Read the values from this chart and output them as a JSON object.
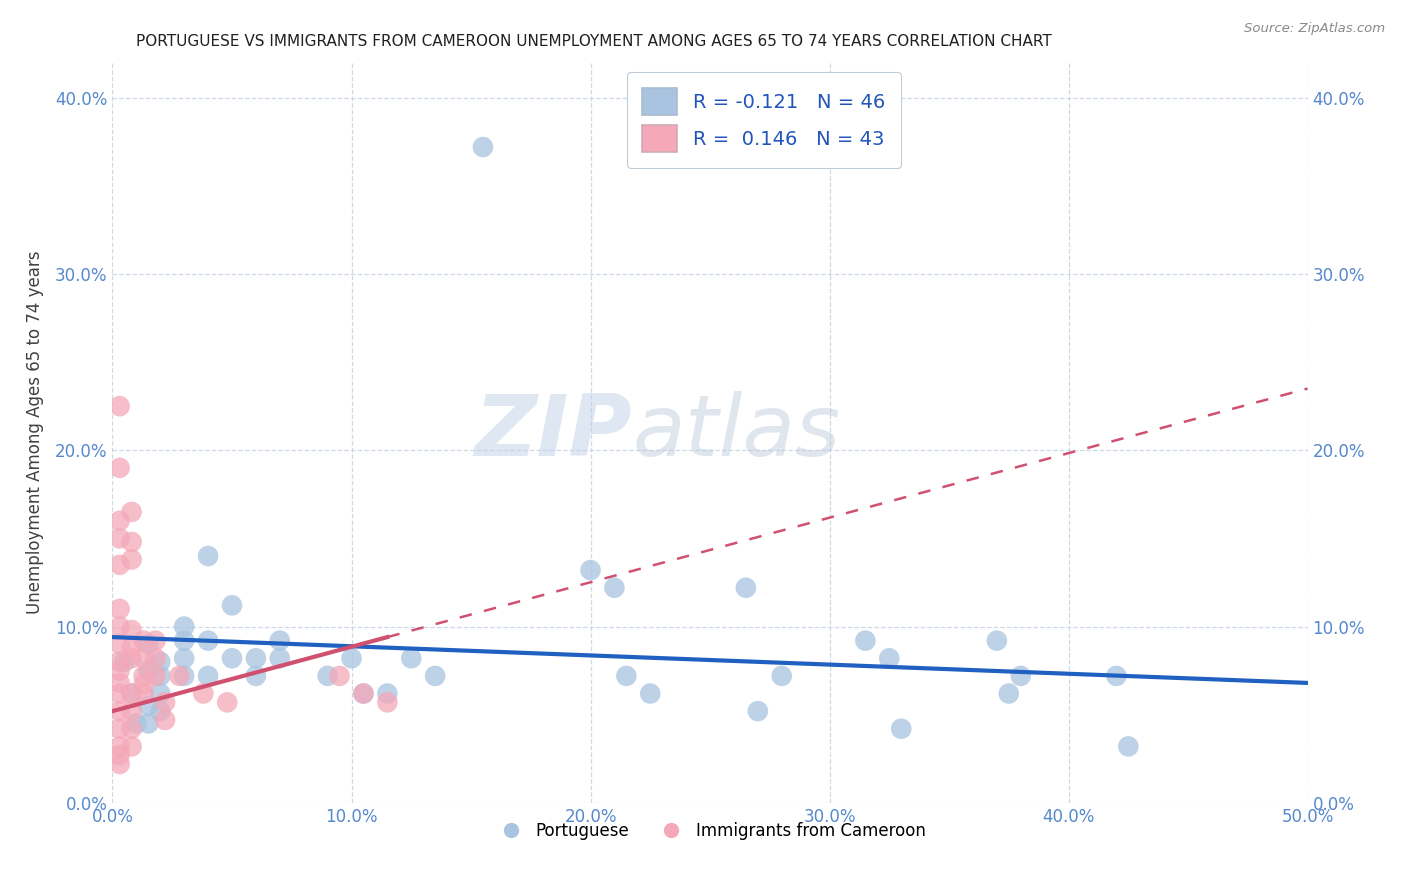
{
  "title": "PORTUGUESE VS IMMIGRANTS FROM CAMEROON UNEMPLOYMENT AMONG AGES 65 TO 74 YEARS CORRELATION CHART",
  "source": "Source: ZipAtlas.com",
  "xlabel": "",
  "ylabel": "Unemployment Among Ages 65 to 74 years",
  "xlim": [
    0.0,
    0.5
  ],
  "ylim": [
    0.0,
    0.42
  ],
  "x_ticks": [
    0.0,
    0.1,
    0.2,
    0.3,
    0.4,
    0.5
  ],
  "x_tick_labels": [
    "0.0%",
    "10.0%",
    "20.0%",
    "30.0%",
    "40.0%",
    "50.0%"
  ],
  "y_ticks": [
    0.0,
    0.1,
    0.2,
    0.3,
    0.4
  ],
  "y_tick_labels": [
    "0.0%",
    "10.0%",
    "20.0%",
    "30.0%",
    "40.0%"
  ],
  "legend_r_blue": "-0.121",
  "legend_n_blue": "46",
  "legend_r_pink": "0.146",
  "legend_n_pink": "43",
  "watermark_zip": "ZIP",
  "watermark_atlas": "atlas",
  "blue_color": "#a8c4e0",
  "pink_color": "#f4a8b8",
  "blue_line_color": "#2060c0",
  "pink_line_color": "#d05070",
  "blue_scatter": [
    [
      0.005,
      0.08
    ],
    [
      0.008,
      0.062
    ],
    [
      0.01,
      0.045
    ],
    [
      0.015,
      0.09
    ],
    [
      0.015,
      0.075
    ],
    [
      0.015,
      0.055
    ],
    [
      0.015,
      0.045
    ],
    [
      0.02,
      0.08
    ],
    [
      0.02,
      0.072
    ],
    [
      0.02,
      0.062
    ],
    [
      0.02,
      0.052
    ],
    [
      0.03,
      0.1
    ],
    [
      0.03,
      0.092
    ],
    [
      0.03,
      0.082
    ],
    [
      0.03,
      0.072
    ],
    [
      0.04,
      0.14
    ],
    [
      0.04,
      0.092
    ],
    [
      0.04,
      0.072
    ],
    [
      0.05,
      0.112
    ],
    [
      0.05,
      0.082
    ],
    [
      0.06,
      0.082
    ],
    [
      0.06,
      0.072
    ],
    [
      0.07,
      0.092
    ],
    [
      0.07,
      0.082
    ],
    [
      0.09,
      0.072
    ],
    [
      0.1,
      0.082
    ],
    [
      0.105,
      0.062
    ],
    [
      0.115,
      0.062
    ],
    [
      0.125,
      0.082
    ],
    [
      0.135,
      0.072
    ],
    [
      0.155,
      0.372
    ],
    [
      0.2,
      0.132
    ],
    [
      0.21,
      0.122
    ],
    [
      0.215,
      0.072
    ],
    [
      0.225,
      0.062
    ],
    [
      0.265,
      0.122
    ],
    [
      0.27,
      0.052
    ],
    [
      0.28,
      0.072
    ],
    [
      0.315,
      0.092
    ],
    [
      0.325,
      0.082
    ],
    [
      0.33,
      0.042
    ],
    [
      0.37,
      0.092
    ],
    [
      0.375,
      0.062
    ],
    [
      0.38,
      0.072
    ],
    [
      0.42,
      0.072
    ],
    [
      0.425,
      0.032
    ]
  ],
  "pink_scatter": [
    [
      0.003,
      0.225
    ],
    [
      0.003,
      0.19
    ],
    [
      0.003,
      0.16
    ],
    [
      0.003,
      0.15
    ],
    [
      0.003,
      0.135
    ],
    [
      0.003,
      0.11
    ],
    [
      0.003,
      0.1
    ],
    [
      0.003,
      0.09
    ],
    [
      0.003,
      0.08
    ],
    [
      0.003,
      0.075
    ],
    [
      0.003,
      0.068
    ],
    [
      0.003,
      0.062
    ],
    [
      0.003,
      0.052
    ],
    [
      0.003,
      0.042
    ],
    [
      0.003,
      0.032
    ],
    [
      0.003,
      0.027
    ],
    [
      0.003,
      0.022
    ],
    [
      0.008,
      0.165
    ],
    [
      0.008,
      0.148
    ],
    [
      0.008,
      0.138
    ],
    [
      0.008,
      0.098
    ],
    [
      0.008,
      0.088
    ],
    [
      0.008,
      0.082
    ],
    [
      0.008,
      0.062
    ],
    [
      0.008,
      0.052
    ],
    [
      0.008,
      0.042
    ],
    [
      0.008,
      0.032
    ],
    [
      0.013,
      0.092
    ],
    [
      0.013,
      0.082
    ],
    [
      0.013,
      0.072
    ],
    [
      0.013,
      0.067
    ],
    [
      0.013,
      0.062
    ],
    [
      0.018,
      0.092
    ],
    [
      0.018,
      0.082
    ],
    [
      0.018,
      0.072
    ],
    [
      0.022,
      0.057
    ],
    [
      0.022,
      0.047
    ],
    [
      0.028,
      0.072
    ],
    [
      0.038,
      0.062
    ],
    [
      0.048,
      0.057
    ],
    [
      0.095,
      0.072
    ],
    [
      0.105,
      0.062
    ],
    [
      0.115,
      0.057
    ]
  ],
  "blue_trend": {
    "x_start": 0.0,
    "y_start": 0.094,
    "x_end": 0.5,
    "y_end": 0.068
  },
  "pink_trend_solid": {
    "x_start": 0.0,
    "y_start": 0.052,
    "x_end": 0.115,
    "y_end": 0.094
  },
  "pink_trend_dashed": {
    "x_start": 0.115,
    "y_start": 0.094,
    "x_end": 0.5,
    "y_end": 0.235
  }
}
